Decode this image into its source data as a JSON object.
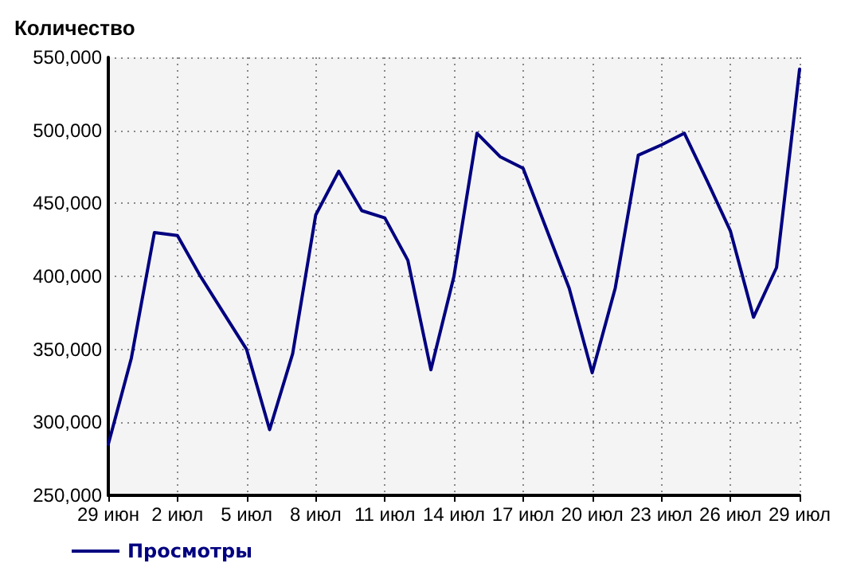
{
  "chart_data": {
    "type": "line",
    "ylabel": "Количество",
    "categories": [
      "29 июн",
      null,
      null,
      "2 июл",
      null,
      null,
      "5 июл",
      null,
      null,
      "8 июл",
      null,
      null,
      "11 июл",
      null,
      null,
      "14 июл",
      null,
      null,
      "17 июл",
      null,
      null,
      "20 июл",
      null,
      null,
      "23 июл",
      null,
      null,
      "26 июл",
      null,
      null,
      "29 июл"
    ],
    "series": [
      {
        "name": "Просмотры",
        "color": "#000080",
        "values": [
          285000,
          344000,
          430000,
          428000,
          400000,
          375000,
          350000,
          295000,
          347000,
          442000,
          472000,
          445000,
          440000,
          411000,
          336000,
          400000,
          498000,
          482000,
          474000,
          433000,
          392000,
          334000,
          392000,
          483000,
          490000,
          498000,
          465000,
          431000,
          372000,
          406000,
          542000
        ]
      }
    ],
    "ylim": [
      250000,
      550000
    ],
    "yticks": [
      {
        "value": 250000,
        "label": "250,000"
      },
      {
        "value": 300000,
        "label": "300,000"
      },
      {
        "value": 350000,
        "label": "350,000"
      },
      {
        "value": 400000,
        "label": "400,000"
      },
      {
        "value": 450000,
        "label": "450,000"
      },
      {
        "value": 500000,
        "label": "500,000"
      },
      {
        "value": 550000,
        "label": "550,000"
      }
    ],
    "grid": true,
    "legend": "bottom left",
    "marker": "none",
    "line_style": "solid"
  }
}
